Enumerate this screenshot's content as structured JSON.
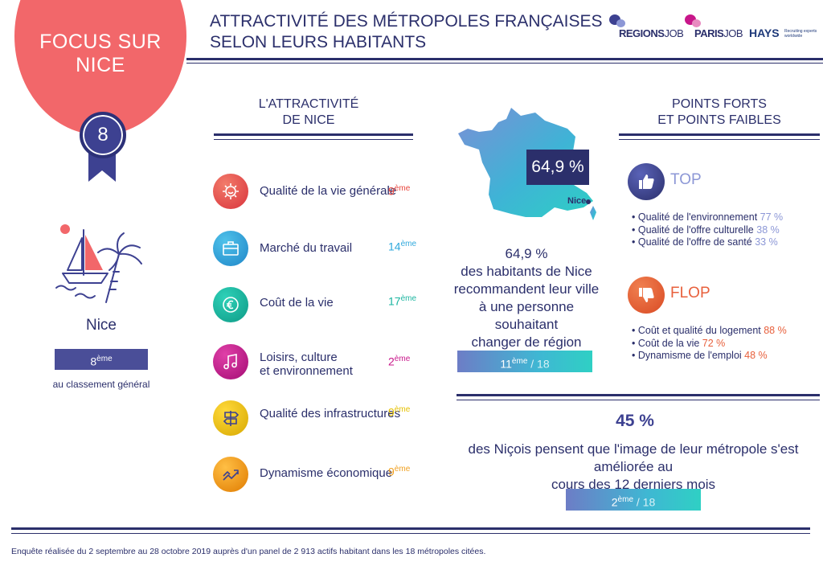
{
  "header": {
    "focus_line1": "FOCUS SUR",
    "focus_line2": "NICE",
    "rank_badge": "8",
    "title_line1": "ATTRACTIVITÉ DES MÉTROPOLES FRANÇAISES",
    "title_line2": "SELON LEURS HABITANTS"
  },
  "logos": {
    "regionsjob_bold": "REGIONS",
    "regionsjob_light": "JOB",
    "parisjob_bold": "PARIS",
    "parisjob_light": "JOB",
    "hays": "HAYS",
    "hays_tagline": "Recruiting experts worldwide"
  },
  "city": {
    "name": "Nice",
    "rank_num": "8",
    "rank_sup": "ème",
    "caption": "au classement général"
  },
  "criteria": {
    "heading_line1": "L'ATTRACTIVITÉ",
    "heading_line2": "DE NICE",
    "items": [
      {
        "label": "Qualité de la vie générale",
        "label2": "",
        "rank": "9",
        "sup": "ème",
        "color": "#e8453c",
        "icon": "smile-sun-icon"
      },
      {
        "label": "Marché du travail",
        "label2": "",
        "rank": "14",
        "sup": "ème",
        "color": "#2fa8dc",
        "icon": "briefcase-icon"
      },
      {
        "label": "Coût de la vie",
        "label2": "",
        "rank": "17",
        "sup": "ème",
        "color": "#1bb5a0",
        "icon": "euro-coin-icon"
      },
      {
        "label": "Loisirs, culture",
        "label2": "et environnement",
        "rank": "2",
        "sup": "ème",
        "color": "#c8168a",
        "icon": "music-note-icon"
      },
      {
        "label": "Qualité des infrastructures",
        "label2": "",
        "rank": "9",
        "sup": "ème",
        "color": "#e5c000",
        "icon": "signpost-icon"
      },
      {
        "label": "Dynamisme économique",
        "label2": "",
        "rank": "9",
        "sup": "ème",
        "color": "#f0a020",
        "icon": "trend-arrows-icon"
      }
    ]
  },
  "recommend": {
    "map_pct": "64,9 %",
    "map_city": "Nice",
    "text_pct": "64,9 %",
    "text_line1": "des habitants de Nice",
    "text_line2": "recommandent leur ville",
    "text_line3": "à une personne souhaitant",
    "text_line4": "changer de région",
    "rank_num": "11",
    "rank_sup": "ème",
    "rank_of": "/ 18",
    "progress_fraction": 0.39
  },
  "points": {
    "heading_line1": "POINTS FORTS",
    "heading_line2": "ET POINTS FAIBLES",
    "top_label": "TOP",
    "top": [
      {
        "label": "Qualité de l'environnement",
        "pct": "77 %"
      },
      {
        "label": "Qualité de l'offre culturelle",
        "pct": "38 %"
      },
      {
        "label": "Qualité de l'offre de santé",
        "pct": "33 %"
      }
    ],
    "flop_label": "FLOP",
    "flop": [
      {
        "label": "Coût et qualité du logement",
        "pct": "88 %"
      },
      {
        "label": "Coût de la vie",
        "pct": "72 %"
      },
      {
        "label": "Dynamisme de l'emploi",
        "pct": "48 %"
      }
    ]
  },
  "image": {
    "pct": "45 %",
    "line1": "des Niçois pensent que l'image de leur métropole s'est améliorée au",
    "line2": "cours des 12 derniers mois",
    "rank_num": "2",
    "rank_sup": "ème",
    "rank_of": "/ 18"
  },
  "footer": {
    "note": "Enquête réalisée du 2 septembre au 28 octobre 2019 auprès d'un panel de 2 913 actifs habitant dans les 18 métropoles citées."
  },
  "colors": {
    "navy": "#2b2f6b",
    "coral": "#f2676a",
    "top_accent": "#8c97d6",
    "flop_accent": "#e8603c"
  }
}
